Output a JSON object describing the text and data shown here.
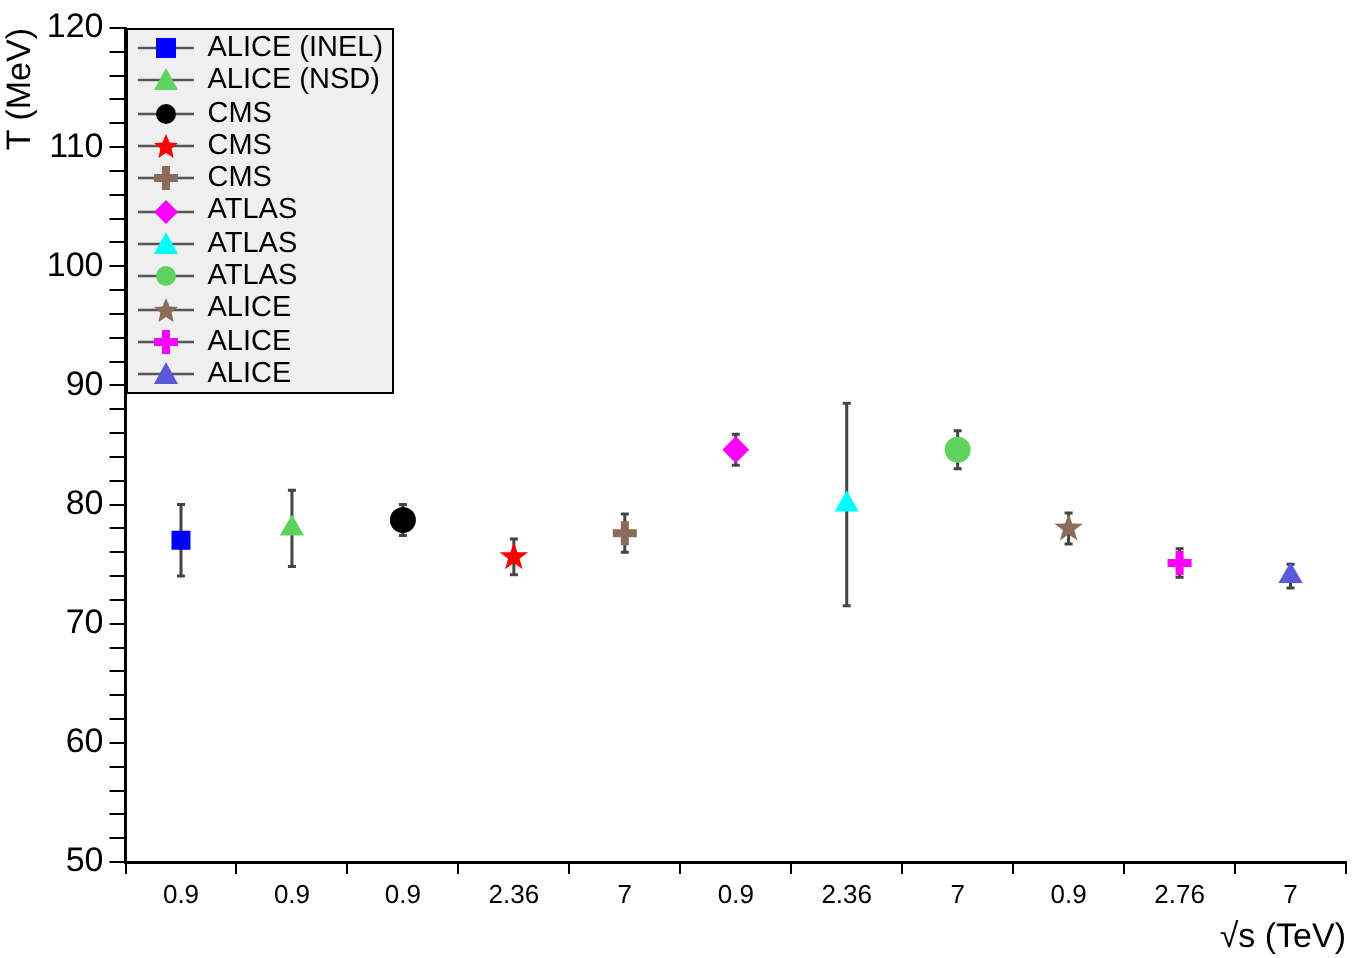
{
  "chart_data": {
    "type": "scatter",
    "xlabel": "√s (TeV)",
    "ylabel": "T (MeV)",
    "categories": [
      "0.9",
      "0.9",
      "0.9",
      "2.36",
      "7",
      "0.9",
      "2.36",
      "7",
      "0.9",
      "2.76",
      "7"
    ],
    "ylim": [
      50,
      120
    ],
    "yticks": [
      50,
      {
        "value": 52,
        "label": null
      },
      {
        "value": 54,
        "label": null
      },
      {
        "value": 56,
        "label": null
      },
      {
        "value": 58,
        "label": null
      },
      60,
      {
        "value": 62,
        "label": null
      },
      {
        "value": 64,
        "label": null
      },
      {
        "value": 66,
        "label": null
      },
      {
        "value": 68,
        "label": null
      },
      70,
      {
        "value": 72,
        "label": null
      },
      {
        "value": 74,
        "label": null
      },
      {
        "value": 76,
        "label": null
      },
      {
        "value": 78,
        "label": null
      },
      80,
      {
        "value": 82,
        "label": null
      },
      {
        "value": 84,
        "label": null
      },
      {
        "value": 86,
        "label": null
      },
      {
        "value": 88,
        "label": null
      },
      90,
      {
        "value": 92,
        "label": null
      },
      {
        "value": 94,
        "label": null
      },
      {
        "value": 96,
        "label": null
      },
      {
        "value": 98,
        "label": null
      },
      100,
      {
        "value": 102,
        "label": null
      },
      {
        "value": 104,
        "label": null
      },
      {
        "value": 106,
        "label": null
      },
      {
        "value": 108,
        "label": null
      },
      110,
      {
        "value": 112,
        "label": null
      },
      {
        "value": 114,
        "label": null
      },
      {
        "value": 116,
        "label": null
      },
      {
        "value": 118,
        "label": null
      },
      120
    ],
    "grid": false,
    "legend": "top left",
    "series": [
      {
        "name": "ALICE (INEL)",
        "color": "#0000ff",
        "marker": "square",
        "values": [
          77,
          null,
          null,
          null,
          null,
          null,
          null,
          null,
          null,
          null,
          null
        ],
        "errors": [
          3,
          null,
          null,
          null,
          null,
          null,
          null,
          null,
          null,
          null,
          null
        ]
      },
      {
        "name": "ALICE (NSD)",
        "color": "#5fd35f",
        "marker": "triangle",
        "values": [
          null,
          78,
          null,
          null,
          null,
          null,
          null,
          null,
          null,
          null,
          null
        ],
        "errors": [
          null,
          3.2,
          null,
          null,
          null,
          null,
          null,
          null,
          null,
          null,
          null
        ]
      },
      {
        "name": "CMS",
        "color": "#000000",
        "marker": "circle",
        "values": [
          null,
          null,
          78.7,
          null,
          null,
          null,
          null,
          null,
          null,
          null,
          null
        ],
        "errors": [
          null,
          null,
          1.3,
          null,
          null,
          null,
          null,
          null,
          null,
          null,
          null
        ]
      },
      {
        "name": "CMS",
        "color": "#ff0000",
        "marker": "star",
        "values": [
          null,
          null,
          null,
          75.6,
          null,
          null,
          null,
          null,
          null,
          null,
          null
        ],
        "errors": [
          null,
          null,
          null,
          1.5,
          null,
          null,
          null,
          null,
          null,
          null,
          null
        ]
      },
      {
        "name": "CMS",
        "color": "#8b6b5b",
        "marker": "cross",
        "values": [
          null,
          null,
          null,
          null,
          77.6,
          null,
          null,
          null,
          null,
          null,
          null
        ],
        "errors": [
          null,
          null,
          null,
          null,
          1.6,
          null,
          null,
          null,
          null,
          null,
          null
        ]
      },
      {
        "name": "ATLAS",
        "color": "#ff00ff",
        "marker": "diamond",
        "values": [
          null,
          null,
          null,
          null,
          null,
          84.6,
          null,
          null,
          null,
          null,
          null
        ],
        "errors": [
          null,
          null,
          null,
          null,
          null,
          1.3,
          null,
          null,
          null,
          null,
          null
        ]
      },
      {
        "name": "ATLAS",
        "color": "#00ffff",
        "marker": "triangle",
        "values": [
          null,
          null,
          null,
          null,
          null,
          null,
          80,
          null,
          null,
          null,
          null
        ],
        "errors": [
          null,
          null,
          null,
          null,
          null,
          null,
          8.5,
          null,
          null,
          null,
          null
        ]
      },
      {
        "name": "ATLAS",
        "color": "#5fd35f",
        "marker": "circle",
        "values": [
          null,
          null,
          null,
          null,
          null,
          null,
          null,
          84.6,
          null,
          null,
          null
        ],
        "errors": [
          null,
          null,
          null,
          null,
          null,
          null,
          null,
          1.6,
          null,
          null,
          null
        ]
      },
      {
        "name": "ALICE",
        "color": "#8b6b5b",
        "marker": "star",
        "values": [
          null,
          null,
          null,
          null,
          null,
          null,
          null,
          null,
          78,
          null,
          null
        ],
        "errors": [
          null,
          null,
          null,
          null,
          null,
          null,
          null,
          null,
          1.3,
          null,
          null
        ]
      },
      {
        "name": "ALICE",
        "color": "#ff00ff",
        "marker": "cross",
        "values": [
          null,
          null,
          null,
          null,
          null,
          null,
          null,
          null,
          null,
          75.1,
          null
        ],
        "errors": [
          null,
          null,
          null,
          null,
          null,
          null,
          null,
          null,
          null,
          1.2,
          null
        ]
      },
      {
        "name": "ALICE",
        "color": "#5a5ad8",
        "marker": "triangle",
        "values": [
          null,
          null,
          null,
          null,
          null,
          null,
          null,
          null,
          null,
          null,
          74
        ],
        "errors": [
          null,
          null,
          null,
          null,
          null,
          null,
          null,
          null,
          null,
          null,
          1
        ]
      }
    ]
  }
}
